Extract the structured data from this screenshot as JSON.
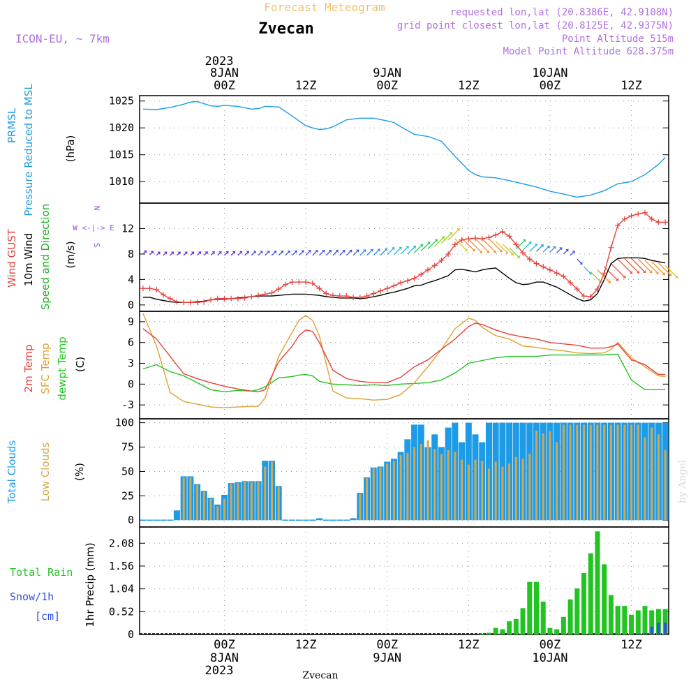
{
  "header": {
    "title": "Forecast Meteogram",
    "location": "Zvecan",
    "model": "ICON-EU, ~ 7km",
    "requested": "requested lon,lat (20.8386E, 42.9108N)",
    "gridpoint": "grid point closest lon,lat (20.8125E, 42.9375N)",
    "point_alt": "Point Altitude 515m",
    "model_alt": "Model Point Altitude 628.375m"
  },
  "footer": {
    "location": "Zvecan",
    "watermark": "by Angel"
  },
  "time_axis": {
    "top_year": "2023",
    "ticks": [
      {
        "h": 12,
        "label": "00Z",
        "date": "8JAN"
      },
      {
        "h": 24,
        "label": "12Z",
        "date": ""
      },
      {
        "h": 36,
        "label": "00Z",
        "date": "9JAN"
      },
      {
        "h": 48,
        "label": "12Z",
        "date": ""
      },
      {
        "h": 60,
        "label": "00Z",
        "date": "10JAN"
      },
      {
        "h": 72,
        "label": "12Z",
        "date": ""
      }
    ],
    "bottom_year": "2023"
  },
  "panels": {
    "pressure": {
      "label1": "PRMSL",
      "label2": "Pressure Reduced to MSL",
      "unit": "(hPa)",
      "color": "#1e9be6",
      "yticks": [
        1010,
        1015,
        1020,
        1025
      ],
      "ylim": [
        1006,
        1026
      ]
    },
    "wind": {
      "label_gust": "Wind GUST",
      "label_wind": "10m Wind",
      "label_dir": "Speed and Direction",
      "unit": "(m/s)",
      "compass_n": "N",
      "compass_s": "S",
      "compass_we": "W <-|-> E",
      "gust_color": "#e8403c",
      "wind_color": "#000000",
      "dir_color": "#22b422",
      "compass_color": "#a050e0",
      "yticks": [
        0,
        4,
        8,
        12
      ],
      "ylim": [
        -1,
        16
      ]
    },
    "temp": {
      "label_t2m": "2m Temp",
      "label_sfc": "SFC Temp",
      "label_dew": "dewpt Temp",
      "unit": "(C)",
      "t2m_color": "#e8403c",
      "sfc_color": "#e0a030",
      "dew_color": "#22c422",
      "yticks": [
        -3,
        0,
        3,
        6,
        9
      ],
      "ylim": [
        -5,
        10.5
      ]
    },
    "clouds": {
      "label_total": "Total Clouds",
      "label_low": "Low Clouds",
      "unit": "(%)",
      "total_color": "#1e9be6",
      "low_color": "#d4a84c",
      "yticks": [
        0,
        25,
        50,
        75,
        100
      ],
      "ylim": [
        -7,
        104
      ]
    },
    "precip": {
      "label_rain": "Total  Rain",
      "label_snow": "Snow/1h",
      "label_cm": "[cm]",
      "unit": "1hr Precip (mm)",
      "rain_color": "#22c422",
      "snow_color": "#3050e0",
      "yticks": [
        0,
        0.52,
        1.04,
        1.56,
        2.08
      ],
      "ylim": [
        0,
        2.45
      ]
    }
  },
  "chart_data": [
    {
      "type": "line",
      "title": "PRMSL Pressure Reduced to MSL",
      "ylabel": "hPa",
      "x": [
        0,
        2,
        4,
        6,
        7,
        8,
        9,
        10,
        11,
        12,
        14,
        16,
        17,
        18,
        20,
        22,
        24,
        25,
        26,
        27,
        28,
        30,
        32,
        34,
        36,
        37,
        38,
        40,
        42,
        44,
        46,
        48,
        49,
        50,
        52,
        54,
        56,
        58,
        60,
        62,
        64,
        66,
        68,
        70,
        72,
        74,
        76,
        77
      ],
      "values": [
        1023.5,
        1023.4,
        1023.8,
        1024.4,
        1024.8,
        1024.9,
        1024.5,
        1024.1,
        1024.0,
        1024.2,
        1024.0,
        1023.5,
        1023.6,
        1024.0,
        1023.9,
        1022.2,
        1020.4,
        1020.0,
        1019.7,
        1019.8,
        1020.2,
        1021.5,
        1021.8,
        1021.8,
        1021.3,
        1021.0,
        1020.2,
        1018.8,
        1018.4,
        1017.5,
        1014.7,
        1012.1,
        1011.3,
        1010.9,
        1010.7,
        1010.2,
        1009.6,
        1009.0,
        1008.2,
        1007.7,
        1007.1,
        1007.5,
        1008.3,
        1009.6,
        1010.0,
        1011.3,
        1013.2,
        1014.5
      ]
    },
    {
      "type": "line",
      "title": "Wind GUST / 10m Wind",
      "ylabel": "m/s",
      "x": [
        0,
        1,
        2,
        3,
        4,
        5,
        6,
        7,
        8,
        9,
        10,
        11,
        12,
        13,
        14,
        15,
        16,
        17,
        18,
        19,
        20,
        21,
        22,
        23,
        24,
        25,
        26,
        27,
        28,
        29,
        30,
        31,
        32,
        33,
        34,
        35,
        36,
        37,
        38,
        39,
        40,
        41,
        42,
        43,
        44,
        45,
        46,
        47,
        48,
        49,
        50,
        51,
        52,
        53,
        54,
        55,
        56,
        57,
        58,
        59,
        60,
        61,
        62,
        63,
        64,
        65,
        66,
        67,
        68,
        69,
        70,
        71,
        72,
        73,
        74,
        75,
        76,
        77
      ],
      "series": [
        {
          "name": "Wind GUST",
          "values": [
            2.6,
            2.6,
            2.4,
            1.6,
            1.0,
            0.5,
            0.4,
            0.4,
            0.4,
            0.5,
            0.8,
            1.0,
            1.0,
            1.0,
            1.0,
            1.1,
            1.3,
            1.5,
            1.7,
            1.9,
            2.5,
            3.2,
            3.6,
            3.6,
            3.6,
            3.4,
            2.6,
            1.8,
            1.5,
            1.4,
            1.4,
            1.2,
            1.2,
            1.4,
            1.8,
            2.2,
            2.6,
            3.0,
            3.5,
            3.8,
            4.2,
            4.8,
            5.5,
            6.2,
            7.0,
            8.0,
            9.5,
            10.2,
            10.4,
            10.5,
            10.4,
            10.6,
            11.0,
            11.5,
            10.8,
            9.5,
            8.2,
            7.2,
            6.5,
            6.0,
            5.5,
            5.0,
            4.5,
            3.5,
            2.5,
            1.4,
            1.3,
            2.5,
            5.0,
            9.0,
            12.5,
            13.5,
            14.0,
            14.3,
            14.5,
            13.5,
            13.0,
            13.0
          ]
        },
        {
          "name": "10m Wind",
          "values": [
            1.2,
            1.2,
            0.9,
            0.7,
            0.5,
            0.4,
            0.4,
            0.4,
            0.5,
            0.6,
            0.8,
            0.9,
            0.9,
            1.0,
            1.1,
            1.2,
            1.3,
            1.4,
            1.4,
            1.4,
            1.5,
            1.6,
            1.7,
            1.7,
            1.7,
            1.6,
            1.5,
            1.3,
            1.2,
            1.1,
            1.1,
            1.1,
            1.0,
            1.1,
            1.3,
            1.5,
            1.8,
            2.0,
            2.3,
            2.6,
            3.0,
            3.1,
            3.5,
            3.8,
            4.2,
            4.6,
            5.5,
            5.6,
            5.4,
            5.2,
            5.5,
            5.7,
            5.8,
            5.0,
            4.2,
            3.5,
            3.2,
            3.3,
            3.6,
            3.6,
            3.2,
            2.8,
            2.2,
            1.6,
            1.0,
            0.6,
            0.8,
            1.8,
            4.0,
            6.5,
            7.3,
            7.4,
            7.4,
            7.4,
            7.3,
            7.0,
            6.8,
            6.6
          ]
        }
      ],
      "arrow_y": [
        8.0,
        7.9,
        7.8,
        7.8,
        7.8,
        7.8,
        7.8,
        7.8,
        7.8,
        7.8,
        7.8,
        7.8,
        7.8,
        7.8,
        7.8,
        7.8,
        7.8,
        7.8,
        7.8,
        7.8,
        7.8,
        7.8,
        7.8,
        7.8,
        7.8,
        7.8,
        7.8,
        7.8,
        7.8,
        7.8,
        7.8,
        7.8,
        7.8,
        7.8,
        7.8,
        7.8,
        7.9,
        7.9,
        8.0,
        8.0,
        8.2,
        8.5,
        8.8,
        9.2,
        9.7,
        10.2,
        10.4,
        10.5,
        10.3,
        10.4,
        10.4,
        10.4,
        10.0,
        9.6,
        9.0,
        8.8,
        8.6,
        8.4,
        8.4,
        8.3,
        8.3,
        8.2,
        8.0,
        7.8,
        7.2,
        6.0,
        5.2,
        5.5,
        6.0,
        6.5,
        7.2,
        7.3,
        7.3,
        7.2,
        7.0,
        6.8,
        6.6,
        6.2
      ],
      "arrow_dir": [
        "NE",
        "NE",
        "NE",
        "NE",
        "NE",
        "NE",
        "NE",
        "NE",
        "NE",
        "NE",
        "NE",
        "NE",
        "NE",
        "NE",
        "NE",
        "NE",
        "NE",
        "NE",
        "NE",
        "NE",
        "NE",
        "NE",
        "NE",
        "NE",
        "NE",
        "NE",
        "NE",
        "NE",
        "NE",
        "NE",
        "NE",
        "NE",
        "NE",
        "NE",
        "NE",
        "NE",
        "NE",
        "NE",
        "NE",
        "NE",
        "NE",
        "NE",
        "NE",
        "NE",
        "NE",
        "NE",
        "SE",
        "SE",
        "SE",
        "SE",
        "SE",
        "SE",
        "SE",
        "SE",
        "SE",
        "NE",
        "NE",
        "NE",
        "NE",
        "NE",
        "NE",
        "NE",
        "NE",
        "NE",
        "SE",
        "SE",
        "SE",
        "SE",
        "SE",
        "SE",
        "SE",
        "SE",
        "SE",
        "SE",
        "SE",
        "SE",
        "SE",
        "SE"
      ],
      "arrow_speed": [
        0.4,
        0.4,
        0.4,
        0.4,
        0.4,
        0.4,
        0.4,
        0.4,
        0.5,
        0.5,
        0.6,
        0.6,
        0.7,
        0.7,
        0.8,
        0.8,
        0.9,
        0.9,
        1.0,
        1.0,
        1.1,
        1.1,
        1.2,
        1.3,
        1.4,
        1.5,
        1.5,
        1.5,
        1.5,
        1.5,
        1.6,
        1.7,
        1.8,
        2.0,
        2.2,
        2.5,
        2.8,
        3.0,
        3.2,
        3.4,
        3.6,
        3.9,
        4.2,
        4.5,
        5.0,
        5.5,
        6.0,
        6.5,
        6.8,
        7.0,
        7.0,
        6.6,
        6.0,
        5.4,
        4.8,
        4.2,
        3.5,
        3.0,
        2.6,
        2.2,
        1.8,
        1.5,
        1.2,
        1.0,
        1.5,
        3.0,
        5.0,
        6.5,
        7.2,
        7.4,
        7.4,
        7.5,
        7.3,
        7.0,
        6.8,
        6.6,
        6.4,
        6.2
      ]
    },
    {
      "type": "line",
      "title": "2m Temp / SFC Temp / dewpt Temp",
      "ylabel": "C",
      "x": [
        0,
        2,
        4,
        6,
        8,
        10,
        12,
        14,
        16,
        17,
        18,
        20,
        22,
        23,
        24,
        25,
        26,
        28,
        30,
        32,
        34,
        36,
        38,
        40,
        42,
        44,
        46,
        48,
        49,
        50,
        52,
        54,
        56,
        58,
        60,
        62,
        64,
        66,
        68,
        69,
        70,
        72,
        74,
        76,
        77
      ],
      "series": [
        {
          "name": "2m Temp",
          "values": [
            8.0,
            6.5,
            4.0,
            1.5,
            0.8,
            0.2,
            -0.3,
            -0.7,
            -1.0,
            -1.1,
            -0.8,
            3.2,
            5.5,
            7.0,
            7.8,
            7.6,
            6.0,
            2.0,
            0.8,
            0.4,
            0.2,
            0.2,
            1.0,
            2.5,
            3.5,
            5.0,
            6.5,
            8.3,
            8.8,
            8.6,
            7.8,
            7.2,
            6.8,
            6.5,
            6.0,
            5.8,
            5.6,
            5.2,
            5.2,
            5.4,
            5.8,
            3.5,
            2.8,
            1.4,
            1.4
          ]
        },
        {
          "name": "SFC Temp",
          "values": [
            10.2,
            5.5,
            -1.2,
            -2.5,
            -2.9,
            -3.3,
            -3.4,
            -3.3,
            -3.2,
            -3.2,
            -2.0,
            4.0,
            7.5,
            9.2,
            9.9,
            9.2,
            7.0,
            -1.0,
            -2.0,
            -2.1,
            -2.3,
            -2.2,
            -1.5,
            0.2,
            2.5,
            5.0,
            8.0,
            9.5,
            9.2,
            8.2,
            7.0,
            6.5,
            5.5,
            5.3,
            5.0,
            4.8,
            4.5,
            4.4,
            4.5,
            5.0,
            6.0,
            3.8,
            2.5,
            1.2,
            1.1
          ]
        },
        {
          "name": "dewpt Temp",
          "values": [
            2.2,
            2.8,
            1.8,
            1.2,
            0.2,
            -0.8,
            -1.1,
            -0.9,
            -1.0,
            -0.8,
            -0.4,
            0.9,
            1.1,
            1.3,
            1.4,
            1.2,
            0.4,
            0.0,
            -0.1,
            -0.2,
            -0.1,
            -0.2,
            0.0,
            0.1,
            0.2,
            0.6,
            1.6,
            3.0,
            3.2,
            3.4,
            3.8,
            4.0,
            4.0,
            4.0,
            4.2,
            4.2,
            4.2,
            4.2,
            4.2,
            4.3,
            4.3,
            0.6,
            -0.8,
            -0.8,
            -0.8
          ]
        }
      ]
    },
    {
      "type": "bar",
      "title": "Total Clouds / Low Clouds",
      "ylabel": "%",
      "x": [
        0,
        1,
        2,
        3,
        4,
        5,
        6,
        7,
        8,
        9,
        10,
        11,
        12,
        13,
        14,
        15,
        16,
        17,
        18,
        19,
        20,
        21,
        22,
        23,
        24,
        25,
        26,
        27,
        28,
        29,
        30,
        31,
        32,
        33,
        34,
        35,
        36,
        37,
        38,
        39,
        40,
        41,
        42,
        43,
        44,
        45,
        46,
        47,
        48,
        49,
        50,
        51,
        52,
        53,
        54,
        55,
        56,
        57,
        58,
        59,
        60,
        61,
        62,
        63,
        64,
        65,
        66,
        67,
        68,
        69,
        70,
        71,
        72,
        73,
        74,
        75,
        76,
        77
      ],
      "series": [
        {
          "name": "Total Clouds",
          "values": [
            0,
            0,
            0,
            0,
            0,
            10,
            45,
            45,
            37,
            30,
            23,
            16,
            26,
            38,
            39,
            40,
            40,
            40,
            61,
            61,
            35,
            0,
            0,
            0,
            0,
            0,
            2,
            0,
            0,
            0,
            0,
            2,
            28,
            44,
            54,
            55,
            60,
            63,
            70,
            83,
            98,
            98,
            75,
            88,
            75,
            95,
            100,
            80,
            100,
            88,
            80,
            100,
            100,
            100,
            100,
            100,
            100,
            100,
            100,
            100,
            100,
            100,
            100,
            100,
            100,
            100,
            100,
            100,
            100,
            100,
            100,
            100,
            100,
            100,
            100,
            100,
            100,
            100
          ]
        },
        {
          "name": "Low Clouds",
          "values": [
            0,
            0,
            0,
            0,
            0,
            0,
            44,
            44,
            36,
            29,
            22,
            14,
            22,
            37,
            38,
            39,
            39,
            39,
            55,
            60,
            34,
            0,
            0,
            0,
            0,
            0,
            0,
            0,
            0,
            0,
            0,
            0,
            27,
            43,
            53,
            54,
            58,
            61,
            67,
            69,
            75,
            78,
            82,
            73,
            68,
            72,
            70,
            62,
            57,
            62,
            61,
            53,
            60,
            55,
            58,
            65,
            63,
            68,
            92,
            89,
            91,
            80,
            98,
            98,
            98,
            98,
            98,
            98,
            98,
            98,
            98,
            98,
            98,
            98,
            85,
            95,
            88,
            72
          ]
        }
      ]
    },
    {
      "type": "bar",
      "title": "1hr Precip (mm)",
      "ylabel": "mm",
      "x": [
        50,
        51,
        52,
        53,
        54,
        55,
        56,
        57,
        58,
        59,
        60,
        61,
        62,
        63,
        64,
        65,
        66,
        67,
        68,
        69,
        70,
        71,
        72,
        73,
        74,
        75,
        76,
        77
      ],
      "series": [
        {
          "name": "Total Rain",
          "values": [
            0.02,
            0.04,
            0.15,
            0.12,
            0.3,
            0.35,
            0.6,
            1.2,
            1.2,
            0.75,
            0.15,
            0.12,
            0.4,
            0.8,
            1.05,
            1.4,
            1.85,
            2.35,
            1.6,
            0.9,
            0.65,
            0.65,
            0.45,
            0.55,
            0.65,
            0.55,
            0.58,
            0.58
          ]
        },
        {
          "name": "Snow/1h",
          "values": [
            0,
            0,
            0,
            0,
            0,
            0,
            0,
            0,
            0,
            0,
            0,
            0,
            0,
            0,
            0,
            0,
            0,
            0,
            0,
            0,
            0,
            0,
            0,
            0.02,
            0.03,
            0.18,
            0.27,
            0.27
          ]
        }
      ]
    }
  ]
}
